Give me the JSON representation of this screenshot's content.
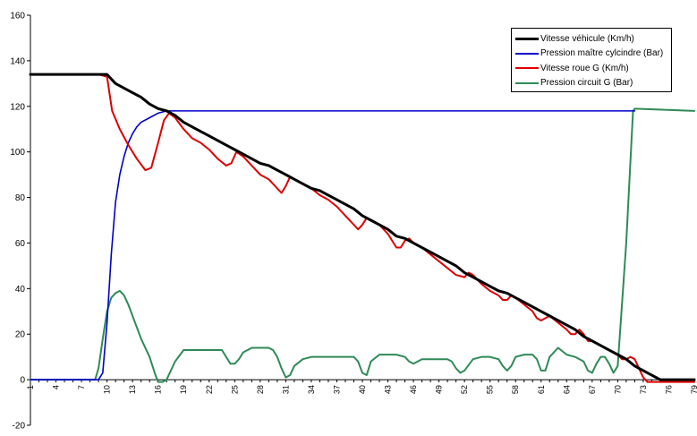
{
  "chart_data": {
    "type": "line",
    "title": "",
    "xlabel": "",
    "ylabel": "",
    "ylim": [
      -20,
      160
    ],
    "yticks": [
      -20,
      0,
      20,
      40,
      60,
      80,
      100,
      120,
      140,
      160
    ],
    "xlim": [
      1,
      79
    ],
    "xticks": [
      1,
      4,
      7,
      10,
      13,
      16,
      19,
      22,
      25,
      28,
      31,
      34,
      37,
      40,
      43,
      46,
      49,
      52,
      55,
      58,
      61,
      64,
      67,
      70,
      73,
      76,
      79
    ],
    "grid": false,
    "legend_position": "top-right",
    "series": [
      {
        "name": "Vitesse véhicule (Km/h)",
        "color": "#000000",
        "width": 3,
        "points": [
          [
            1,
            134
          ],
          [
            9,
            134
          ],
          [
            10,
            134
          ],
          [
            11,
            130
          ],
          [
            12,
            128
          ],
          [
            13,
            126
          ],
          [
            14,
            124
          ],
          [
            15,
            121
          ],
          [
            16,
            119
          ],
          [
            17,
            118
          ],
          [
            18,
            116
          ],
          [
            19,
            113
          ],
          [
            20,
            111
          ],
          [
            21,
            109
          ],
          [
            22,
            107
          ],
          [
            23,
            105
          ],
          [
            24,
            103
          ],
          [
            25,
            101
          ],
          [
            26,
            99
          ],
          [
            27,
            97
          ],
          [
            28,
            95
          ],
          [
            29,
            94
          ],
          [
            30,
            92
          ],
          [
            31,
            90
          ],
          [
            32,
            88
          ],
          [
            33,
            86
          ],
          [
            34,
            84
          ],
          [
            35,
            83
          ],
          [
            36,
            81
          ],
          [
            37,
            79
          ],
          [
            38,
            77
          ],
          [
            39,
            75
          ],
          [
            40,
            72
          ],
          [
            41,
            70
          ],
          [
            42,
            68
          ],
          [
            43,
            66
          ],
          [
            44,
            63
          ],
          [
            45,
            62
          ],
          [
            46,
            60
          ],
          [
            47,
            58
          ],
          [
            48,
            56
          ],
          [
            49,
            54
          ],
          [
            50,
            52
          ],
          [
            51,
            50
          ],
          [
            52,
            47
          ],
          [
            53,
            45
          ],
          [
            54,
            43
          ],
          [
            55,
            41
          ],
          [
            56,
            39
          ],
          [
            57,
            38
          ],
          [
            58,
            36
          ],
          [
            59,
            34
          ],
          [
            60,
            32
          ],
          [
            61,
            30
          ],
          [
            62,
            28
          ],
          [
            63,
            26
          ],
          [
            64,
            24
          ],
          [
            65,
            22
          ],
          [
            66,
            19
          ],
          [
            67,
            17
          ],
          [
            68,
            15
          ],
          [
            69,
            13
          ],
          [
            70,
            11
          ],
          [
            71,
            9
          ],
          [
            72,
            6
          ],
          [
            73,
            4
          ],
          [
            74,
            2
          ],
          [
            75,
            0
          ],
          [
            79,
            0
          ]
        ]
      },
      {
        "name": "Pression maître cylcindre (Bar)",
        "color": "#0000cc",
        "width": 1.6,
        "points": [
          [
            1,
            0
          ],
          [
            9,
            0
          ],
          [
            9.5,
            3
          ],
          [
            10,
            25
          ],
          [
            10.5,
            55
          ],
          [
            11,
            78
          ],
          [
            11.5,
            90
          ],
          [
            12,
            98
          ],
          [
            12.5,
            104
          ],
          [
            13,
            108
          ],
          [
            13.5,
            111
          ],
          [
            14,
            113
          ],
          [
            15,
            115
          ],
          [
            16,
            117
          ],
          [
            17,
            118
          ],
          [
            72,
            118
          ]
        ]
      },
      {
        "name": "Vitesse roue G (Km/h)",
        "color": "#dd0000",
        "width": 2,
        "points": [
          [
            1,
            134
          ],
          [
            9,
            134
          ],
          [
            10,
            133
          ],
          [
            10.6,
            118
          ],
          [
            11.5,
            110
          ],
          [
            12.5,
            103
          ],
          [
            13.5,
            97
          ],
          [
            14.5,
            92
          ],
          [
            15.2,
            93
          ],
          [
            16,
            104
          ],
          [
            16.7,
            114
          ],
          [
            17.3,
            117
          ],
          [
            18,
            115
          ],
          [
            19,
            110
          ],
          [
            20,
            106
          ],
          [
            21,
            104
          ],
          [
            22,
            101
          ],
          [
            23,
            97
          ],
          [
            24,
            94
          ],
          [
            24.6,
            95
          ],
          [
            25.2,
            100
          ],
          [
            26,
            98
          ],
          [
            27,
            94
          ],
          [
            28,
            90
          ],
          [
            29,
            88
          ],
          [
            30,
            84
          ],
          [
            30.5,
            82
          ],
          [
            31,
            85
          ],
          [
            31.5,
            89
          ],
          [
            32,
            88
          ],
          [
            33,
            86
          ],
          [
            34,
            84
          ],
          [
            35,
            81
          ],
          [
            36,
            79
          ],
          [
            37,
            76
          ],
          [
            38,
            72
          ],
          [
            39,
            68
          ],
          [
            39.5,
            66
          ],
          [
            40,
            68
          ],
          [
            40.5,
            71
          ],
          [
            41,
            70
          ],
          [
            42,
            68
          ],
          [
            43,
            64
          ],
          [
            43.5,
            61
          ],
          [
            44,
            58
          ],
          [
            44.5,
            58
          ],
          [
            45,
            61
          ],
          [
            45.5,
            62
          ],
          [
            46,
            60
          ],
          [
            47,
            58
          ],
          [
            48,
            55
          ],
          [
            49,
            52
          ],
          [
            50,
            49
          ],
          [
            51,
            46
          ],
          [
            52,
            45
          ],
          [
            52.5,
            47
          ],
          [
            53,
            46
          ],
          [
            54,
            42
          ],
          [
            55,
            39
          ],
          [
            56,
            37
          ],
          [
            56.5,
            35
          ],
          [
            57,
            35
          ],
          [
            57.5,
            37
          ],
          [
            58,
            36
          ],
          [
            59,
            33
          ],
          [
            60,
            30
          ],
          [
            60.5,
            27
          ],
          [
            61,
            26
          ],
          [
            61.5,
            27
          ],
          [
            62,
            28
          ],
          [
            63,
            25
          ],
          [
            64,
            22
          ],
          [
            64.5,
            20
          ],
          [
            65,
            20
          ],
          [
            65.5,
            22
          ],
          [
            66,
            20
          ],
          [
            66.5,
            17
          ],
          [
            67,
            17
          ],
          [
            68,
            15
          ],
          [
            69,
            13
          ],
          [
            70,
            11
          ],
          [
            70.5,
            9
          ],
          [
            71,
            9
          ],
          [
            71.5,
            10
          ],
          [
            72,
            9
          ],
          [
            72.5,
            5
          ],
          [
            73,
            1
          ],
          [
            73.5,
            -1
          ],
          [
            74,
            -1
          ],
          [
            79,
            -1
          ]
        ]
      },
      {
        "name": "Pression circuit G (Bar)",
        "color": "#2e8b57",
        "width": 2,
        "points": [
          [
            1,
            0
          ],
          [
            8,
            0
          ],
          [
            8.6,
            0
          ],
          [
            9,
            5
          ],
          [
            9.5,
            18
          ],
          [
            10,
            30
          ],
          [
            10.5,
            36
          ],
          [
            11,
            38
          ],
          [
            11.5,
            39
          ],
          [
            12,
            37
          ],
          [
            12.5,
            33
          ],
          [
            13,
            28
          ],
          [
            14,
            18
          ],
          [
            15,
            10
          ],
          [
            15.6,
            3
          ],
          [
            16,
            -1
          ],
          [
            16.5,
            -1
          ],
          [
            17,
            0
          ],
          [
            18,
            8
          ],
          [
            19,
            13
          ],
          [
            20,
            13
          ],
          [
            21,
            13
          ],
          [
            22,
            13
          ],
          [
            23,
            13
          ],
          [
            23.5,
            13
          ],
          [
            24,
            10
          ],
          [
            24.5,
            7
          ],
          [
            25,
            7
          ],
          [
            25.5,
            9
          ],
          [
            26,
            12
          ],
          [
            27,
            14
          ],
          [
            28,
            14
          ],
          [
            29,
            14
          ],
          [
            29.5,
            13
          ],
          [
            30,
            10
          ],
          [
            30.5,
            5
          ],
          [
            31,
            1
          ],
          [
            31.5,
            2
          ],
          [
            32,
            6
          ],
          [
            33,
            9
          ],
          [
            34,
            10
          ],
          [
            35,
            10
          ],
          [
            36,
            10
          ],
          [
            37,
            10
          ],
          [
            38,
            10
          ],
          [
            39,
            10
          ],
          [
            39.5,
            8
          ],
          [
            40,
            3
          ],
          [
            40.5,
            2
          ],
          [
            41,
            8
          ],
          [
            42,
            11
          ],
          [
            43,
            11
          ],
          [
            44,
            11
          ],
          [
            45,
            10
          ],
          [
            45.5,
            8
          ],
          [
            46,
            7
          ],
          [
            46.5,
            8
          ],
          [
            47,
            9
          ],
          [
            48,
            9
          ],
          [
            49,
            9
          ],
          [
            50,
            9
          ],
          [
            50.5,
            8
          ],
          [
            51,
            5
          ],
          [
            51.5,
            3
          ],
          [
            52,
            4
          ],
          [
            53,
            9
          ],
          [
            54,
            10
          ],
          [
            55,
            10
          ],
          [
            56,
            9
          ],
          [
            56.5,
            6
          ],
          [
            57,
            4
          ],
          [
            57.5,
            6
          ],
          [
            58,
            10
          ],
          [
            59,
            11
          ],
          [
            60,
            11
          ],
          [
            60.5,
            9
          ],
          [
            61,
            4
          ],
          [
            61.5,
            4
          ],
          [
            62,
            10
          ],
          [
            63,
            14
          ],
          [
            64,
            11
          ],
          [
            65,
            10
          ],
          [
            66,
            8
          ],
          [
            66.5,
            4
          ],
          [
            67,
            3
          ],
          [
            67.5,
            7
          ],
          [
            68,
            10
          ],
          [
            68.5,
            10
          ],
          [
            69,
            7
          ],
          [
            69.5,
            3
          ],
          [
            70,
            6
          ],
          [
            71,
            60
          ],
          [
            71.8,
            118
          ],
          [
            72,
            119
          ],
          [
            79,
            118
          ]
        ]
      }
    ]
  }
}
